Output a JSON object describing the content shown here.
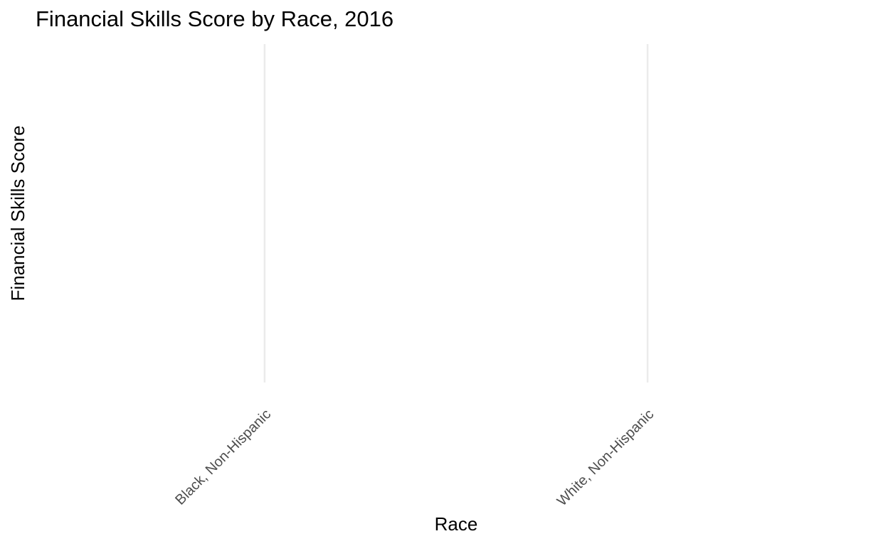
{
  "chart_data": {
    "type": "bar",
    "title": "Financial Skills Score by Race, 2016",
    "xlabel": "Race",
    "ylabel": "Financial Skills Score",
    "categories": [
      "Black, Non-Hispanic",
      "White, Non-Hispanic"
    ],
    "grid": true
  }
}
